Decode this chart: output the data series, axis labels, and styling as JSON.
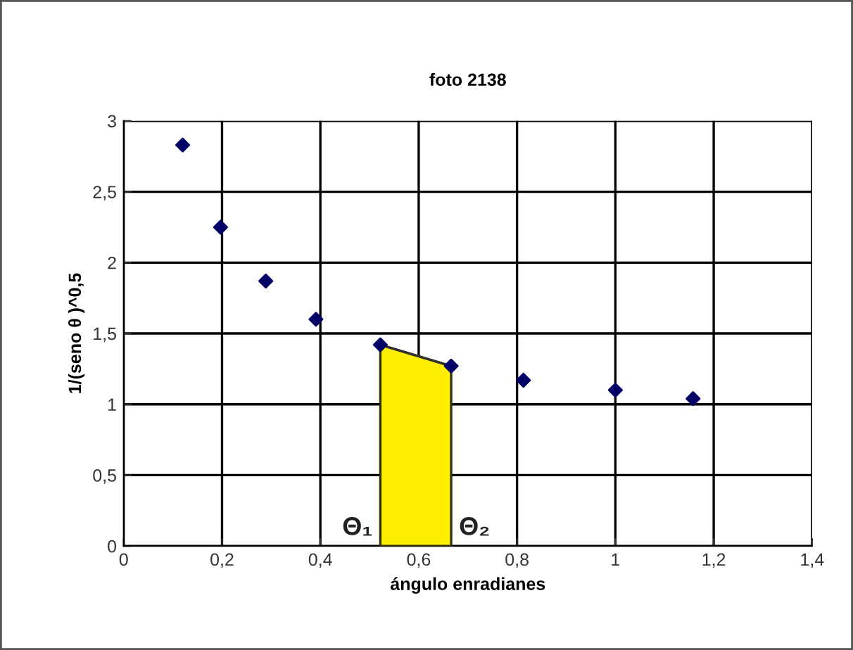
{
  "chart_data": {
    "type": "scatter",
    "title": "foto 2138",
    "xlabel": "ángulo enradianes",
    "ylabel": "1/(seno θ )^0,5",
    "series": [
      {
        "color": "#000066",
        "marker": "diamond",
        "x": [
          0.12,
          0.197,
          0.289,
          0.391,
          0.522,
          0.666,
          0.813,
          1.0,
          1.158
        ],
        "values": [
          2.83,
          2.25,
          1.87,
          1.6,
          1.42,
          1.27,
          1.17,
          1.1,
          1.04
        ]
      },
      {
        "type": "area",
        "color": "#ffee00",
        "x": [
          0.522,
          0.666
        ],
        "values": [
          1.42,
          1.27
        ]
      }
    ],
    "annotations": [
      {
        "text": "Θ₁",
        "x": 0.522,
        "y": 0
      },
      {
        "text": "Θ₂",
        "x": 0.666,
        "y": 0
      }
    ],
    "grid": true,
    "xlim": [
      0,
      1.4
    ],
    "xticks": [
      0,
      {
        "value": 0.2,
        "label": "0,2"
      },
      {
        "value": 0.4,
        "label": "0,4"
      },
      {
        "value": 0.6,
        "label": "0,6"
      },
      {
        "value": 0.8,
        "label": "0,8"
      },
      1,
      {
        "value": 1.2,
        "label": "1,2"
      },
      {
        "value": 1.4,
        "label": "1,4"
      }
    ],
    "ylim": [
      0,
      3
    ],
    "yticks": [
      0,
      {
        "value": 0.5,
        "label": "0,5"
      },
      1,
      {
        "value": 1.5,
        "label": "1,5"
      },
      2,
      {
        "value": 2.5,
        "label": "2,5"
      },
      3
    ]
  }
}
